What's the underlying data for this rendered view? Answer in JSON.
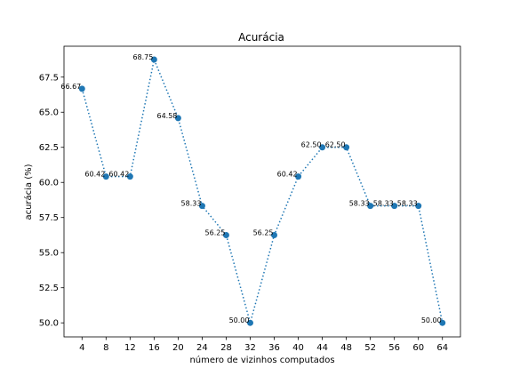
{
  "chart_data": {
    "type": "line",
    "title": "Acurácia",
    "xlabel": "número de vizinhos computados",
    "ylabel": "acurácia (%)",
    "x": [
      4,
      8,
      12,
      16,
      20,
      24,
      28,
      32,
      36,
      40,
      44,
      48,
      52,
      56,
      60,
      64
    ],
    "y": [
      66.67,
      60.42,
      60.42,
      68.75,
      64.58,
      58.33,
      56.25,
      50.0,
      56.25,
      60.42,
      62.5,
      62.5,
      58.33,
      58.33,
      58.33,
      50.0
    ],
    "data_labels": [
      "66.67",
      "60.42",
      "60.42",
      "68.75",
      "64.58",
      "58.33",
      "56.25",
      "50.00",
      "56.25",
      "60.42",
      "62.50",
      "62.50",
      "58.33",
      "58.33",
      "58.33",
      "50.00"
    ],
    "x_ticks": [
      "4",
      "8",
      "12",
      "16",
      "20",
      "24",
      "28",
      "32",
      "36",
      "40",
      "44",
      "48",
      "52",
      "56",
      "60",
      "64"
    ],
    "y_ticks": [
      "50.0",
      "52.5",
      "55.0",
      "57.5",
      "60.0",
      "62.5",
      "65.0",
      "67.5"
    ],
    "y_tick_values": [
      50.0,
      52.5,
      55.0,
      57.5,
      60.0,
      62.5,
      65.0,
      67.5
    ],
    "xlim": [
      1,
      67
    ],
    "ylim": [
      49.0,
      69.7
    ],
    "grid": false,
    "line_style": "dotted",
    "marker": "circle",
    "color": "#1f77b4"
  }
}
